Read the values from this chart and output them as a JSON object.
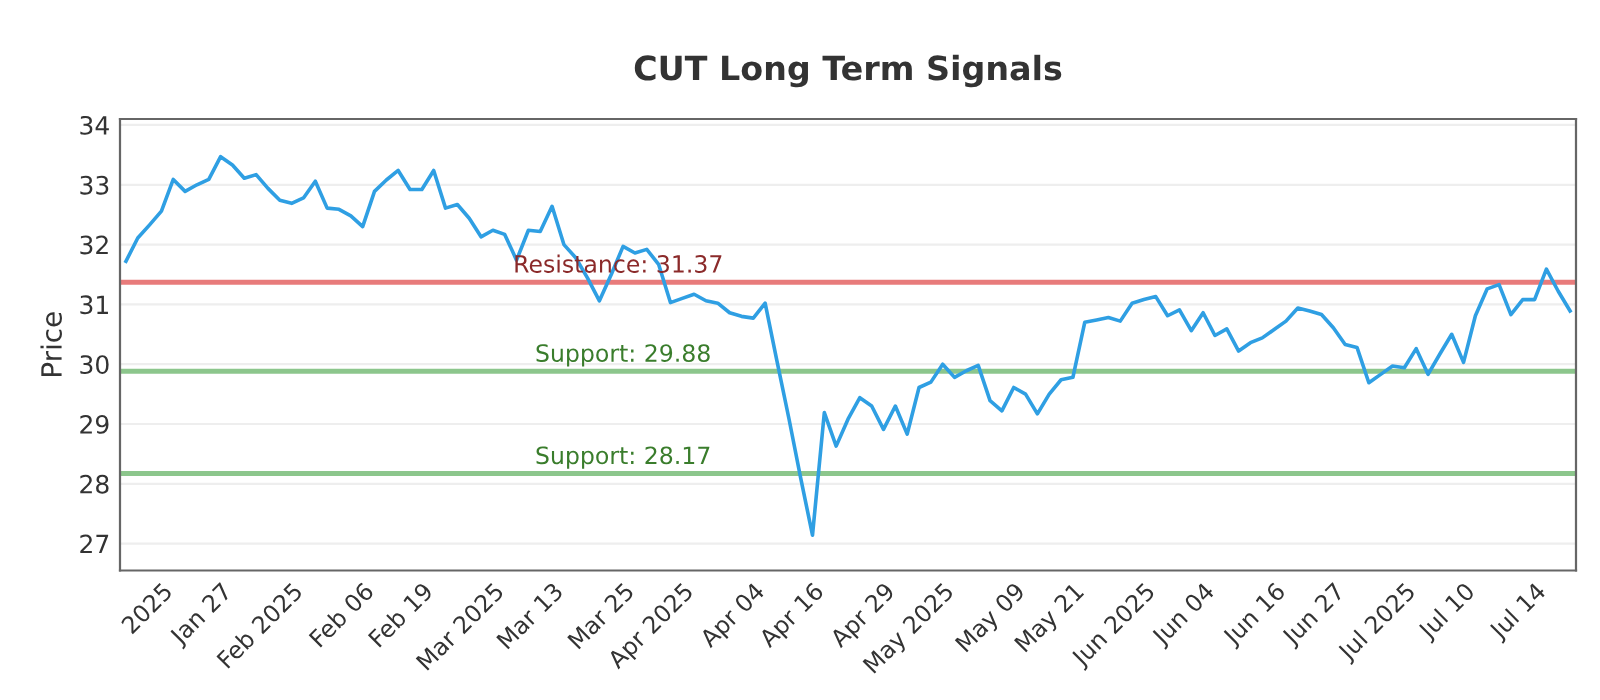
{
  "chart_data": {
    "type": "line",
    "title": "CUT Long Term Signals",
    "ylabel": "Price",
    "categories": [
      null,
      null,
      null,
      "2025",
      null,
      null,
      null,
      null,
      "Jan 27",
      null,
      null,
      null,
      null,
      null,
      "Feb 2025",
      null,
      null,
      null,
      null,
      null,
      "Feb 06",
      null,
      null,
      null,
      null,
      "Feb 19",
      null,
      null,
      null,
      null,
      null,
      "Mar 2025",
      null,
      null,
      null,
      null,
      "Mar 13",
      null,
      null,
      null,
      null,
      null,
      "Mar 25",
      null,
      null,
      null,
      null,
      "Apr 2025",
      null,
      null,
      null,
      null,
      null,
      "Apr 04",
      null,
      null,
      null,
      null,
      "Apr 16",
      null,
      null,
      null,
      null,
      null,
      "Apr 29",
      null,
      null,
      null,
      null,
      "May 2025",
      null,
      null,
      null,
      null,
      null,
      "May 09",
      null,
      null,
      null,
      null,
      "May 21",
      null,
      null,
      null,
      null,
      null,
      "Jun 2025",
      null,
      null,
      null,
      null,
      "Jun 04",
      null,
      null,
      null,
      null,
      null,
      "Jun 16",
      null,
      null,
      null,
      null,
      "Jun 27",
      null,
      null,
      null,
      null,
      null,
      "Jul 2025",
      null,
      null,
      null,
      null,
      "Jul 10",
      null,
      null,
      null,
      null,
      null,
      "Jul 14",
      null,
      null,
      null
    ],
    "series": [
      {
        "color": "#2f9fe3",
        "values": [
          31.72,
          32.11,
          32.33,
          32.56,
          33.09,
          32.89,
          33.0,
          33.09,
          33.47,
          33.33,
          33.11,
          33.17,
          32.94,
          32.74,
          32.69,
          32.78,
          33.06,
          32.61,
          32.59,
          32.48,
          32.3,
          32.89,
          33.08,
          33.24,
          32.92,
          32.92,
          33.24,
          32.61,
          32.67,
          32.44,
          32.13,
          32.24,
          32.17,
          31.74,
          32.24,
          32.22,
          32.64,
          32.0,
          31.78,
          31.44,
          31.06,
          31.5,
          31.97,
          31.86,
          31.92,
          31.67,
          31.03,
          31.1,
          31.17,
          31.06,
          31.02,
          30.86,
          30.8,
          30.77,
          31.02,
          30.05,
          29.1,
          28.1,
          27.14,
          29.19,
          28.63,
          29.08,
          29.44,
          29.3,
          28.91,
          29.3,
          28.83,
          29.61,
          29.7,
          30.0,
          29.78,
          29.89,
          29.98,
          29.39,
          29.22,
          29.61,
          29.5,
          29.17,
          29.5,
          29.74,
          29.78,
          30.7,
          30.74,
          30.78,
          30.72,
          31.02,
          31.08,
          31.13,
          30.81,
          30.91,
          30.56,
          30.86,
          30.48,
          30.59,
          30.22,
          30.36,
          30.44,
          30.58,
          30.72,
          30.94,
          30.89,
          30.83,
          30.61,
          30.33,
          30.28,
          29.69,
          29.83,
          29.97,
          29.94,
          30.26,
          29.83,
          30.17,
          30.5,
          30.03,
          30.81,
          31.26,
          31.33,
          30.83,
          31.08,
          31.08,
          31.59,
          31.22,
          30.89
        ]
      }
    ],
    "ylim": [
      26.55,
      34.1
    ],
    "yticks": [
      27,
      28,
      29,
      30,
      31,
      32,
      33,
      34
    ],
    "grid": "y",
    "marker": "none",
    "line_style": "solid",
    "legend": false,
    "ref_lines": [
      {
        "axis": "y",
        "value": 31.37,
        "label": "Resistance: 31.37",
        "color": "#e87b7b"
      },
      {
        "axis": "y",
        "value": 29.88,
        "label": "Support: 29.88",
        "color": "#8cc68c"
      },
      {
        "axis": "y",
        "value": 28.17,
        "label": "Support: 28.17",
        "color": "#8cc68c"
      }
    ]
  }
}
